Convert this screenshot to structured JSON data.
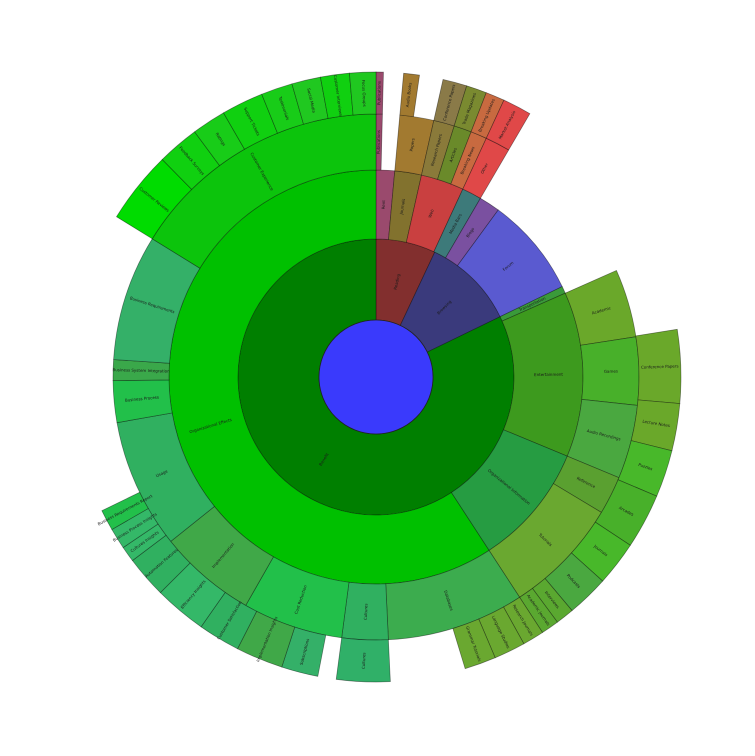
{
  "chart_data": {
    "type": "sunburst",
    "title": "",
    "center": {
      "color": "#3a3afc"
    },
    "rings": [
      {
        "ring": 1,
        "segments": [
          {
            "name": "Reading",
            "start_deg": 0,
            "end_deg": 25.2,
            "color": "#822f2e"
          },
          {
            "name": "Browsing",
            "start_deg": 25.2,
            "end_deg": 64.1,
            "color": "#3a3a7c"
          },
          {
            "name": "Benefit",
            "start_deg": 64.1,
            "end_deg": 360,
            "color": "#007f00"
          }
        ]
      },
      {
        "ring": 2,
        "segments": [
          {
            "name": "Rent",
            "start_deg": 0,
            "end_deg": 5.2,
            "color": "#9a4a6d"
          },
          {
            "name": "Journals",
            "start_deg": 5.2,
            "end_deg": 12.7,
            "color": "#82722e"
          },
          {
            "name": "Web",
            "start_deg": 12.7,
            "end_deg": 24.8,
            "color": "#c94040"
          },
          {
            "name": "Media Bars",
            "start_deg": 24.8,
            "end_deg": 30.3,
            "color": "#3d7a7a"
          },
          {
            "name": "Blogs",
            "start_deg": 30.3,
            "end_deg": 36.2,
            "color": "#7a50a0"
          },
          {
            "name": "Forum",
            "start_deg": 36.2,
            "end_deg": 64.1,
            "color": "#5a5ad0"
          },
          {
            "name": "Transportation",
            "start_deg": 64.1,
            "end_deg": 66.1,
            "color": "#3a9a3a"
          },
          {
            "name": "Entertainment",
            "start_deg": 66.1,
            "end_deg": 112.5,
            "color": "#3d9a1e"
          },
          {
            "name": "Organizational Information",
            "start_deg": 112.5,
            "end_deg": 146.9,
            "color": "#269c42"
          },
          {
            "name": "Organizational Effects",
            "start_deg": 146.9,
            "end_deg": 360,
            "color": "#00c000"
          }
        ]
      },
      {
        "ring": 3,
        "segments": [
          {
            "name": "Publications",
            "start_deg": 0,
            "end_deg": 1.4,
            "color": "#9a4a6d"
          },
          {
            "name": "Papers",
            "start_deg": 5.2,
            "end_deg": 12.7,
            "color": "#a27a30"
          },
          {
            "name": "Research Papers",
            "start_deg": 12.7,
            "end_deg": 17.3,
            "color": "#8a7a3a"
          },
          {
            "name": "Articles",
            "start_deg": 17.3,
            "end_deg": 21.2,
            "color": "#6a8a2a"
          },
          {
            "name": "Breaking News",
            "start_deg": 21.2,
            "end_deg": 24.8,
            "color": "#c86a40"
          },
          {
            "name": "Other",
            "start_deg": 24.8,
            "end_deg": 30.3,
            "color": "#e04848"
          },
          {
            "name": "Academic",
            "start_deg": 66.1,
            "end_deg": 81.2,
            "color": "#6aa82a"
          },
          {
            "name": "Games",
            "start_deg": 81.2,
            "end_deg": 96.2,
            "color": "#48b02a"
          },
          {
            "name": "Audio Recordings",
            "start_deg": 96.2,
            "end_deg": 112.5,
            "color": "#4aa840"
          },
          {
            "name": "Reference",
            "start_deg": 112.5,
            "end_deg": 121.0,
            "color": "#5aa030"
          },
          {
            "name": "Tutorials",
            "start_deg": 121.0,
            "end_deg": 146.9,
            "color": "#6aa830"
          },
          {
            "name": "Databases",
            "start_deg": 146.9,
            "end_deg": 177.3,
            "color": "#3cac4e"
          },
          {
            "name": "Cultures",
            "start_deg": 177.3,
            "end_deg": 187.5,
            "color": "#30b060"
          },
          {
            "name": "Cost Reduction",
            "start_deg": 187.5,
            "end_deg": 209.7,
            "color": "#22c04a"
          },
          {
            "name": "Implementation",
            "start_deg": 209.7,
            "end_deg": 231.3,
            "color": "#40a848"
          },
          {
            "name": "Usage",
            "start_deg": 231.3,
            "end_deg": 260.0,
            "color": "#30b060"
          },
          {
            "name": "Business Process",
            "start_deg": 260.0,
            "end_deg": 269.2,
            "color": "#22c04a"
          },
          {
            "name": "Business System Integration",
            "start_deg": 269.2,
            "end_deg": 273.8,
            "color": "#3aa84a"
          },
          {
            "name": "Business Requirements",
            "start_deg": 273.8,
            "end_deg": 301.7,
            "color": "#34b068"
          },
          {
            "name": "Customer Experience",
            "start_deg": 301.7,
            "end_deg": 360,
            "color": "#0cc40c"
          }
        ]
      },
      {
        "ring": 4,
        "segments": [
          {
            "name": "Publications",
            "start_deg": 0,
            "end_deg": 1.4,
            "color": "#9a4a6d"
          },
          {
            "name": "Audio Books",
            "start_deg": 5.2,
            "end_deg": 8.2,
            "color": "#a27a30"
          },
          {
            "name": "Conference Papers",
            "start_deg": 12.7,
            "end_deg": 17.3,
            "color": "#8a7a48"
          },
          {
            "name": "Trade Magazines",
            "start_deg": 17.3,
            "end_deg": 21.2,
            "color": "#7a8a30"
          },
          {
            "name": "Breaking Updates",
            "start_deg": 21.2,
            "end_deg": 24.8,
            "color": "#c86a40"
          },
          {
            "name": "Market Analysis",
            "start_deg": 24.8,
            "end_deg": 30.3,
            "color": "#e04848"
          },
          {
            "name": "Conference Papers",
            "start_deg": 81.0,
            "end_deg": 95.0,
            "color": "#6aa82a"
          },
          {
            "name": "Lecture Notes",
            "start_deg": 95.0,
            "end_deg": 104.0,
            "color": "#6aa82a"
          },
          {
            "name": "Puzzles",
            "start_deg": 104.0,
            "end_deg": 113.0,
            "color": "#48b82a"
          },
          {
            "name": "Arcades",
            "start_deg": 113.0,
            "end_deg": 123.5,
            "color": "#48b02a"
          },
          {
            "name": "Journals",
            "start_deg": 123.5,
            "end_deg": 132.0,
            "color": "#48b82a"
          },
          {
            "name": "Podcasts",
            "start_deg": 132.0,
            "end_deg": 140.0,
            "color": "#4aa840"
          },
          {
            "name": "Interviews",
            "start_deg": 140.0,
            "end_deg": 143.5,
            "color": "#5aa830"
          },
          {
            "name": "Academic Journals",
            "start_deg": 143.5,
            "end_deg": 146.9,
            "color": "#5aa830"
          },
          {
            "name": "Research Journals",
            "start_deg": 146.9,
            "end_deg": 151.0,
            "color": "#6aa830"
          },
          {
            "name": "Language Studies",
            "start_deg": 151.0,
            "end_deg": 157.0,
            "color": "#6aa830"
          },
          {
            "name": "Grammar Tutorials",
            "start_deg": 157.0,
            "end_deg": 163.0,
            "color": "#6aa830"
          },
          {
            "name": "Cultures",
            "start_deg": 177.3,
            "end_deg": 187.5,
            "color": "#30b068"
          },
          {
            "name": "Subscriptions",
            "start_deg": 191.0,
            "end_deg": 198.0,
            "color": "#34b068"
          },
          {
            "name": "Implementation Insights",
            "start_deg": 198.0,
            "end_deg": 207.0,
            "color": "#40a848"
          },
          {
            "name": "Customer Satisfaction",
            "start_deg": 207.0,
            "end_deg": 215.0,
            "color": "#30b060"
          },
          {
            "name": "Efficiency Insights",
            "start_deg": 215.0,
            "end_deg": 225.0,
            "color": "#34b868"
          },
          {
            "name": "Automation Features",
            "start_deg": 225.0,
            "end_deg": 233.0,
            "color": "#30b060"
          },
          {
            "name": "Cultures Insights",
            "start_deg": 233.0,
            "end_deg": 236.0,
            "color": "#34b868"
          },
          {
            "name": "Business Process Insights",
            "start_deg": 236.0,
            "end_deg": 240.0,
            "color": "#34b868"
          },
          {
            "name": "Business Requirements Report",
            "start_deg": 240.0,
            "end_deg": 244.0,
            "color": "#22c04a"
          },
          {
            "name": "Customer Reviews",
            "start_deg": 301.7,
            "end_deg": 315.5,
            "color": "#00dc00"
          },
          {
            "name": "Feedback Surveys",
            "start_deg": 315.5,
            "end_deg": 323.5,
            "color": "#10d010"
          },
          {
            "name": "Ratings",
            "start_deg": 323.5,
            "end_deg": 330.0,
            "color": "#18cc18"
          },
          {
            "name": "Support Tickets",
            "start_deg": 330.0,
            "end_deg": 338.0,
            "color": "#10d010"
          },
          {
            "name": "Testimonials",
            "start_deg": 338.0,
            "end_deg": 344.0,
            "color": "#18cc18"
          },
          {
            "name": "Social Media",
            "start_deg": 344.0,
            "end_deg": 349.5,
            "color": "#20c820"
          },
          {
            "name": "Customer Interviews",
            "start_deg": 349.5,
            "end_deg": 355.0,
            "color": "#10d010"
          },
          {
            "name": "Focus Groups",
            "start_deg": 355.0,
            "end_deg": 360,
            "color": "#20c820"
          }
        ]
      }
    ]
  }
}
